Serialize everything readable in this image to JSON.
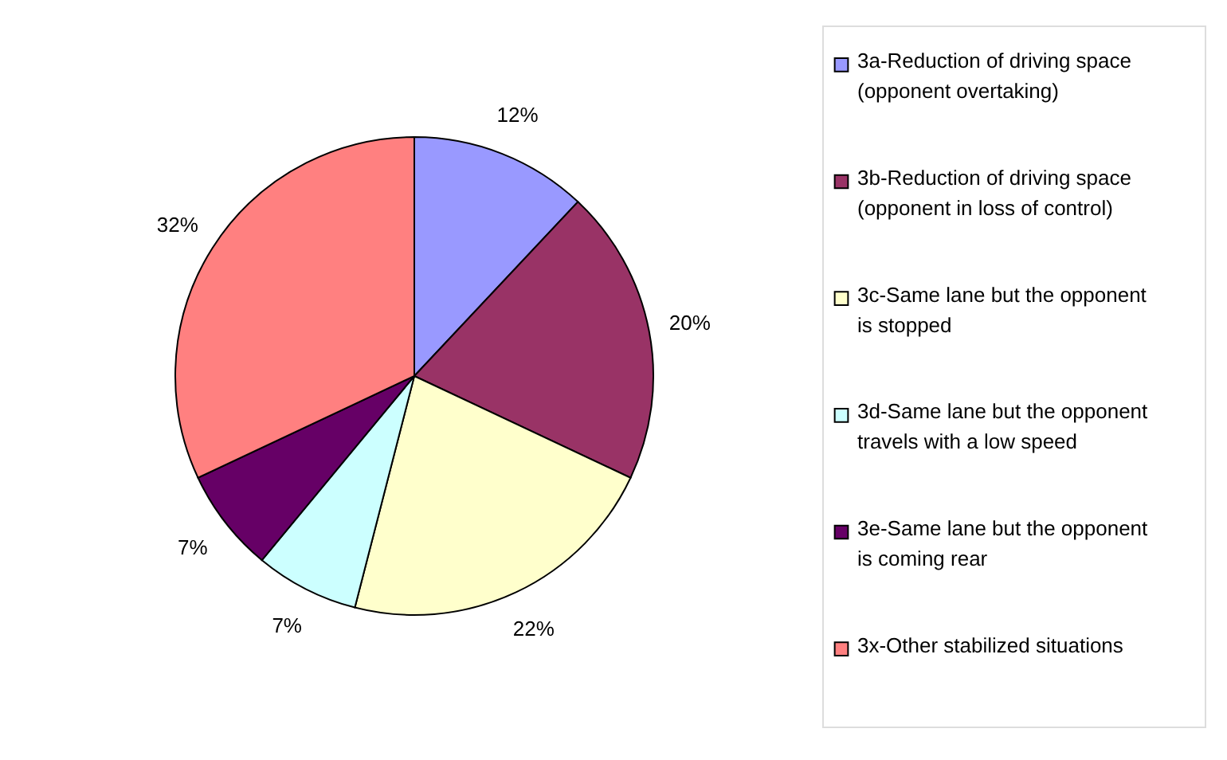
{
  "chart_data": {
    "type": "pie",
    "categories": [
      "3a-Reduction of driving space (opponent overtaking)",
      "3b-Reduction of driving space (opponent in loss of control)",
      "3c-Same lane but the opponent is stopped",
      "3d-Same lane but the opponent travels with a low speed",
      "3e-Same lane but the opponent is coming rear",
      "3x-Other stabilized situations"
    ],
    "values": [
      12,
      20,
      22,
      7,
      7,
      32
    ],
    "value_labels": [
      "12%",
      "20%",
      "22%",
      "7%",
      "7%",
      "32%"
    ],
    "colors": [
      "#9999ff",
      "#993366",
      "#ffffcc",
      "#ccffff",
      "#660066",
      "#ff8080"
    ],
    "legend": "right"
  }
}
